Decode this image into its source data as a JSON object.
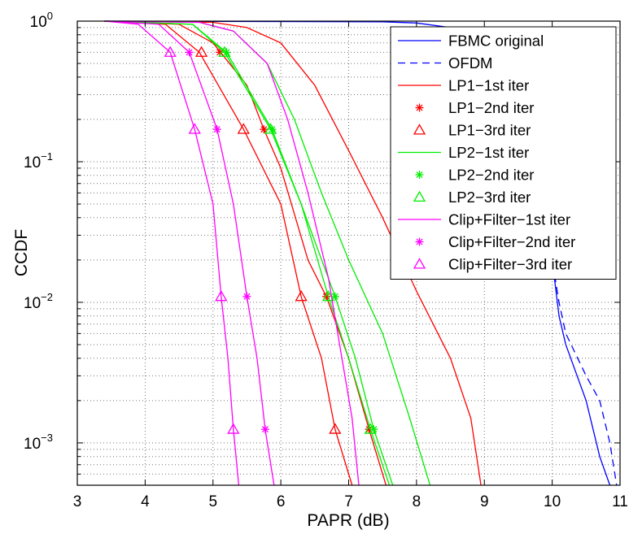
{
  "chart_data": {
    "type": "line",
    "xlabel": "PAPR (dB)",
    "ylabel": "CCDF",
    "xlim": [
      3,
      11
    ],
    "ylim": [
      0.0005,
      1
    ],
    "yscale": "log",
    "grid": true,
    "legend_position": "top-right",
    "x_ticks": [
      "3",
      "4",
      "5",
      "6",
      "7",
      "8",
      "9",
      "10",
      "11"
    ],
    "y_ticks": [
      {
        "value": 1,
        "base": "10",
        "exp": "0"
      },
      {
        "value": 0.1,
        "base": "10",
        "exp": "−1"
      },
      {
        "value": 0.01,
        "base": "10",
        "exp": "−2"
      },
      {
        "value": 0.001,
        "base": "10",
        "exp": "−3"
      }
    ],
    "series": [
      {
        "name": "FBMC original",
        "color": "#0000ff",
        "style": "solid",
        "marker": "none",
        "points": [
          [
            3.4,
            1
          ],
          [
            7.5,
            0.99
          ],
          [
            8,
            0.97
          ],
          [
            8.5,
            0.9
          ],
          [
            9,
            0.78
          ],
          [
            9.2,
            0.7
          ],
          [
            9.5,
            0.5
          ],
          [
            9.6,
            0.3
          ],
          [
            9.7,
            0.2
          ],
          [
            9.8,
            0.1
          ],
          [
            9.9,
            0.05
          ],
          [
            10,
            0.02
          ],
          [
            10.1,
            0.008
          ],
          [
            10.2,
            0.005
          ],
          [
            10.5,
            0.002
          ],
          [
            10.7,
            0.0008
          ],
          [
            10.85,
            0.0005
          ]
        ]
      },
      {
        "name": "OFDM",
        "color": "#0000ff",
        "style": "dashed",
        "marker": "none",
        "points": [
          [
            9.6,
            0.3
          ],
          [
            9.7,
            0.2
          ],
          [
            9.8,
            0.1
          ],
          [
            9.9,
            0.05
          ],
          [
            10,
            0.02
          ],
          [
            10.1,
            0.01
          ],
          [
            10.2,
            0.006
          ],
          [
            10.5,
            0.003
          ],
          [
            10.7,
            0.002
          ],
          [
            10.85,
            0.001
          ],
          [
            10.95,
            0.0005
          ]
        ]
      },
      {
        "name": "LP1−1st iter",
        "color": "#ff0000",
        "style": "solid",
        "marker": "none",
        "points": [
          [
            3.4,
            1
          ],
          [
            5,
            0.98
          ],
          [
            5.5,
            0.9
          ],
          [
            6,
            0.7
          ],
          [
            6.5,
            0.35
          ],
          [
            7,
            0.12
          ],
          [
            7.5,
            0.04
          ],
          [
            8,
            0.012
          ],
          [
            8.5,
            0.004
          ],
          [
            8.8,
            0.0015
          ],
          [
            8.95,
            0.0005
          ]
        ]
      },
      {
        "name": "LP1−2nd iter",
        "color": "#ff0000",
        "style": "solid",
        "marker": "star",
        "points": [
          [
            3.4,
            1
          ],
          [
            4.5,
            0.95
          ],
          [
            5,
            0.7
          ],
          [
            5.5,
            0.35
          ],
          [
            5.75,
            0.17
          ],
          [
            6,
            0.09
          ],
          [
            6.4,
            0.02
          ],
          [
            6.67,
            0.011
          ],
          [
            7,
            0.004
          ],
          [
            7.3,
            0.00125
          ],
          [
            7.55,
            0.0005
          ]
        ],
        "markers": [
          [
            5.1,
            0.6
          ],
          [
            5.75,
            0.17
          ],
          [
            6.67,
            0.011
          ],
          [
            7.3,
            0.00125
          ]
        ]
      },
      {
        "name": "LP1−3rd iter",
        "color": "#ff0000",
        "style": "solid",
        "marker": "triangle",
        "points": [
          [
            3.4,
            1
          ],
          [
            4.3,
            0.95
          ],
          [
            4.8,
            0.6
          ],
          [
            5.45,
            0.17
          ],
          [
            6,
            0.05
          ],
          [
            6.3,
            0.011
          ],
          [
            6.6,
            0.004
          ],
          [
            6.8,
            0.00125
          ],
          [
            7.05,
            0.0005
          ]
        ],
        "markers": [
          [
            4.83,
            0.6
          ],
          [
            5.45,
            0.17
          ],
          [
            6.3,
            0.011
          ],
          [
            6.8,
            0.00125
          ]
        ]
      },
      {
        "name": "LP2−1st iter",
        "color": "#00ee00",
        "style": "solid",
        "marker": "none",
        "points": [
          [
            3.4,
            1
          ],
          [
            4.8,
            0.98
          ],
          [
            5.3,
            0.85
          ],
          [
            5.8,
            0.5
          ],
          [
            6.2,
            0.2
          ],
          [
            6.6,
            0.06
          ],
          [
            7,
            0.02
          ],
          [
            7.5,
            0.006
          ],
          [
            7.9,
            0.0015
          ],
          [
            8.2,
            0.0005
          ]
        ]
      },
      {
        "name": "LP2−2nd iter",
        "color": "#00ee00",
        "style": "solid",
        "marker": "star",
        "points": [
          [
            3.4,
            1
          ],
          [
            4.7,
            0.95
          ],
          [
            5.2,
            0.6
          ],
          [
            5.87,
            0.17
          ],
          [
            6.3,
            0.05
          ],
          [
            6.8,
            0.011
          ],
          [
            7.1,
            0.004
          ],
          [
            7.37,
            0.00125
          ],
          [
            7.65,
            0.0005
          ]
        ],
        "markers": [
          [
            5.2,
            0.6
          ],
          [
            5.87,
            0.17
          ],
          [
            6.8,
            0.011
          ],
          [
            7.37,
            0.00125
          ]
        ]
      },
      {
        "name": "LP2−3rd iter",
        "color": "#00ee00",
        "style": "solid",
        "marker": "triangle",
        "points": [
          [
            3.4,
            1
          ],
          [
            4.7,
            0.95
          ],
          [
            5.17,
            0.6
          ],
          [
            5.85,
            0.17
          ],
          [
            6.3,
            0.05
          ],
          [
            6.7,
            0.011
          ],
          [
            7,
            0.004
          ],
          [
            7.32,
            0.00125
          ],
          [
            7.6,
            0.0005
          ]
        ],
        "markers": [
          [
            5.17,
            0.6
          ],
          [
            5.85,
            0.17
          ],
          [
            6.7,
            0.011
          ],
          [
            7.32,
            0.00125
          ]
        ]
      },
      {
        "name": "Clip+Filter−1st iter",
        "color": "#ff00ff",
        "style": "solid",
        "marker": "none",
        "points": [
          [
            3.4,
            1
          ],
          [
            4.8,
            0.98
          ],
          [
            5.3,
            0.85
          ],
          [
            5.8,
            0.5
          ],
          [
            6.1,
            0.2
          ],
          [
            6.4,
            0.06
          ],
          [
            6.7,
            0.015
          ],
          [
            6.9,
            0.004
          ],
          [
            7.05,
            0.0015
          ],
          [
            7.15,
            0.0005
          ]
        ]
      },
      {
        "name": "Clip+Filter−2nd iter",
        "color": "#ff00ff",
        "style": "solid",
        "marker": "star",
        "points": [
          [
            3.4,
            1
          ],
          [
            4.2,
            0.95
          ],
          [
            4.65,
            0.6
          ],
          [
            5.06,
            0.17
          ],
          [
            5.3,
            0.05
          ],
          [
            5.5,
            0.011
          ],
          [
            5.65,
            0.004
          ],
          [
            5.77,
            0.00125
          ],
          [
            5.9,
            0.0005
          ]
        ],
        "markers": [
          [
            4.65,
            0.6
          ],
          [
            5.06,
            0.17
          ],
          [
            5.5,
            0.011
          ],
          [
            5.77,
            0.00125
          ]
        ]
      },
      {
        "name": "Clip+Filter−3rd iter",
        "color": "#ff00ff",
        "style": "solid",
        "marker": "triangle",
        "points": [
          [
            3.4,
            1
          ],
          [
            3.9,
            0.95
          ],
          [
            4.37,
            0.6
          ],
          [
            4.73,
            0.17
          ],
          [
            5,
            0.05
          ],
          [
            5.12,
            0.011
          ],
          [
            5.22,
            0.004
          ],
          [
            5.3,
            0.00125
          ],
          [
            5.38,
            0.0005
          ]
        ],
        "markers": [
          [
            4.37,
            0.6
          ],
          [
            4.73,
            0.17
          ],
          [
            5.12,
            0.011
          ],
          [
            5.3,
            0.00125
          ]
        ]
      }
    ]
  }
}
